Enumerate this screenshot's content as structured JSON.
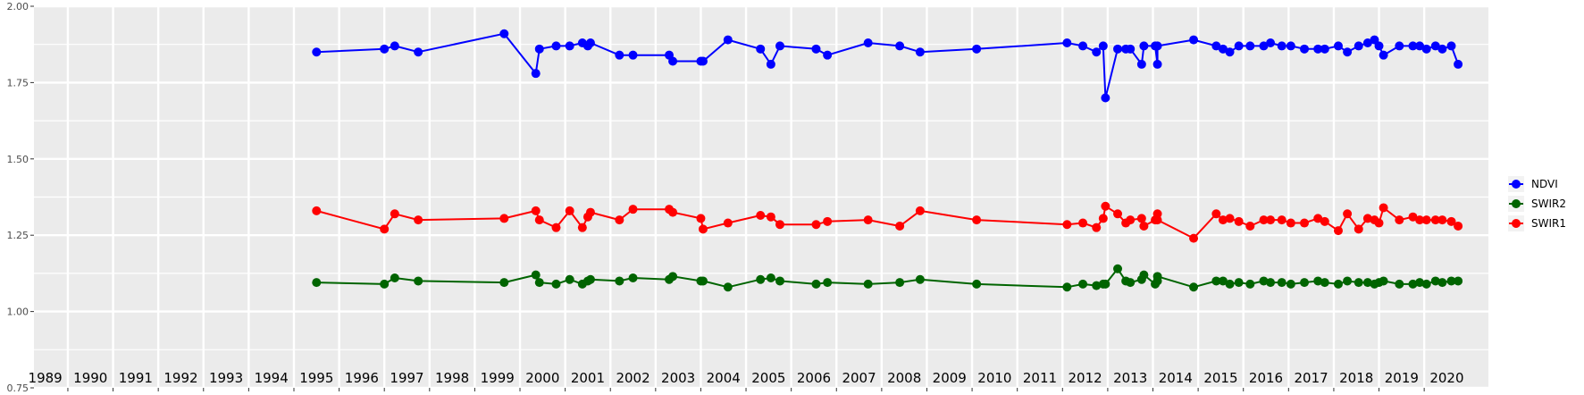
{
  "chart_data": {
    "type": "line",
    "title": "",
    "xlabel": "",
    "ylabel": "",
    "xlim": [
      1988.75,
      2020.92
    ],
    "ylim": [
      0.75,
      2.0
    ],
    "y_ticks": [
      "0.75",
      "1.00",
      "1.25",
      "1.50",
      "1.75",
      "2.00"
    ],
    "y_tick_values": [
      0.75,
      1.0,
      1.25,
      1.5,
      1.75,
      2.0
    ],
    "year_labels": [
      "1989",
      "1990",
      "1991",
      "1992",
      "1993",
      "1994",
      "1995",
      "1996",
      "1997",
      "1998",
      "1999",
      "2000",
      "2001",
      "2002",
      "2003",
      "2004",
      "2005",
      "2006",
      "2007",
      "2008",
      "2009",
      "2010",
      "2011",
      "2012",
      "2013",
      "2014",
      "2015",
      "2016",
      "2017",
      "2018",
      "2019",
      "2020"
    ],
    "grid": true,
    "legend_position": "right",
    "series": [
      {
        "name": "NDVI",
        "color": "#0000FF",
        "points": [
          [
            1995.0,
            1.85
          ],
          [
            1996.5,
            1.86
          ],
          [
            1996.73,
            1.87
          ],
          [
            1997.25,
            1.85
          ],
          [
            1999.15,
            1.91
          ],
          [
            1999.85,
            1.78
          ],
          [
            1999.93,
            1.86
          ],
          [
            2000.3,
            1.87
          ],
          [
            2000.6,
            1.87
          ],
          [
            2000.88,
            1.88
          ],
          [
            2001.0,
            1.87
          ],
          [
            2001.06,
            1.88
          ],
          [
            2001.7,
            1.84
          ],
          [
            2002.0,
            1.84
          ],
          [
            2002.8,
            1.84
          ],
          [
            2002.88,
            1.82
          ],
          [
            2003.5,
            1.82
          ],
          [
            2003.55,
            1.82
          ],
          [
            2004.1,
            1.89
          ],
          [
            2004.82,
            1.86
          ],
          [
            2005.05,
            1.81
          ],
          [
            2005.25,
            1.87
          ],
          [
            2006.05,
            1.86
          ],
          [
            2006.3,
            1.84
          ],
          [
            2007.2,
            1.88
          ],
          [
            2007.9,
            1.87
          ],
          [
            2008.35,
            1.85
          ],
          [
            2009.6,
            1.86
          ],
          [
            2011.6,
            1.88
          ],
          [
            2011.95,
            1.87
          ],
          [
            2012.25,
            1.85
          ],
          [
            2012.4,
            1.87
          ],
          [
            2012.45,
            1.7
          ],
          [
            2012.72,
            1.86
          ],
          [
            2012.9,
            1.86
          ],
          [
            2013.0,
            1.86
          ],
          [
            2013.25,
            1.81
          ],
          [
            2013.3,
            1.87
          ],
          [
            2013.55,
            1.87
          ],
          [
            2013.6,
            1.81
          ],
          [
            2013.6,
            1.87
          ],
          [
            2014.4,
            1.89
          ],
          [
            2014.9,
            1.87
          ],
          [
            2015.05,
            1.86
          ],
          [
            2015.2,
            1.85
          ],
          [
            2015.4,
            1.87
          ],
          [
            2015.65,
            1.87
          ],
          [
            2015.95,
            1.87
          ],
          [
            2016.1,
            1.88
          ],
          [
            2016.35,
            1.87
          ],
          [
            2016.55,
            1.87
          ],
          [
            2016.85,
            1.86
          ],
          [
            2017.15,
            1.86
          ],
          [
            2017.3,
            1.86
          ],
          [
            2017.6,
            1.87
          ],
          [
            2017.8,
            1.85
          ],
          [
            2018.05,
            1.87
          ],
          [
            2018.25,
            1.88
          ],
          [
            2018.4,
            1.89
          ],
          [
            2018.5,
            1.87
          ],
          [
            2018.6,
            1.84
          ],
          [
            2018.95,
            1.87
          ],
          [
            2019.25,
            1.87
          ],
          [
            2019.4,
            1.87
          ],
          [
            2019.55,
            1.86
          ],
          [
            2019.75,
            1.87
          ],
          [
            2019.9,
            1.86
          ],
          [
            2020.1,
            1.87
          ],
          [
            2020.25,
            1.81
          ]
        ]
      },
      {
        "name": "SWIR2",
        "color": "#006400",
        "points": [
          [
            1995.0,
            1.095
          ],
          [
            1996.5,
            1.09
          ],
          [
            1996.73,
            1.11
          ],
          [
            1997.25,
            1.1
          ],
          [
            1999.15,
            1.095
          ],
          [
            1999.85,
            1.12
          ],
          [
            1999.93,
            1.095
          ],
          [
            2000.3,
            1.09
          ],
          [
            2000.6,
            1.105
          ],
          [
            2000.88,
            1.09
          ],
          [
            2001.0,
            1.1
          ],
          [
            2001.06,
            1.105
          ],
          [
            2001.7,
            1.1
          ],
          [
            2002.0,
            1.11
          ],
          [
            2002.8,
            1.105
          ],
          [
            2002.88,
            1.115
          ],
          [
            2003.5,
            1.1
          ],
          [
            2003.55,
            1.1
          ],
          [
            2004.1,
            1.08
          ],
          [
            2004.82,
            1.105
          ],
          [
            2005.05,
            1.11
          ],
          [
            2005.25,
            1.1
          ],
          [
            2006.05,
            1.09
          ],
          [
            2006.3,
            1.095
          ],
          [
            2007.2,
            1.09
          ],
          [
            2007.9,
            1.095
          ],
          [
            2008.35,
            1.105
          ],
          [
            2009.6,
            1.09
          ],
          [
            2011.6,
            1.08
          ],
          [
            2011.95,
            1.09
          ],
          [
            2012.25,
            1.085
          ],
          [
            2012.4,
            1.09
          ],
          [
            2012.45,
            1.09
          ],
          [
            2012.72,
            1.14
          ],
          [
            2012.9,
            1.1
          ],
          [
            2013.0,
            1.095
          ],
          [
            2013.25,
            1.105
          ],
          [
            2013.3,
            1.12
          ],
          [
            2013.55,
            1.09
          ],
          [
            2013.6,
            1.1
          ],
          [
            2013.6,
            1.115
          ],
          [
            2014.4,
            1.08
          ],
          [
            2014.9,
            1.1
          ],
          [
            2015.05,
            1.1
          ],
          [
            2015.2,
            1.09
          ],
          [
            2015.4,
            1.095
          ],
          [
            2015.65,
            1.09
          ],
          [
            2015.95,
            1.1
          ],
          [
            2016.1,
            1.095
          ],
          [
            2016.35,
            1.095
          ],
          [
            2016.55,
            1.09
          ],
          [
            2016.85,
            1.095
          ],
          [
            2017.15,
            1.1
          ],
          [
            2017.3,
            1.095
          ],
          [
            2017.6,
            1.09
          ],
          [
            2017.8,
            1.1
          ],
          [
            2018.05,
            1.095
          ],
          [
            2018.25,
            1.095
          ],
          [
            2018.4,
            1.09
          ],
          [
            2018.5,
            1.095
          ],
          [
            2018.6,
            1.1
          ],
          [
            2018.95,
            1.09
          ],
          [
            2019.25,
            1.09
          ],
          [
            2019.4,
            1.095
          ],
          [
            2019.55,
            1.09
          ],
          [
            2019.75,
            1.1
          ],
          [
            2019.9,
            1.095
          ],
          [
            2020.1,
            1.1
          ],
          [
            2020.25,
            1.1
          ]
        ]
      },
      {
        "name": "SWIR1",
        "color": "#FF0000",
        "points": [
          [
            1995.0,
            1.33
          ],
          [
            1996.5,
            1.27
          ],
          [
            1996.73,
            1.32
          ],
          [
            1997.25,
            1.3
          ],
          [
            1999.15,
            1.305
          ],
          [
            1999.85,
            1.33
          ],
          [
            1999.93,
            1.3
          ],
          [
            2000.3,
            1.275
          ],
          [
            2000.6,
            1.33
          ],
          [
            2000.88,
            1.275
          ],
          [
            2001.0,
            1.31
          ],
          [
            2001.06,
            1.325
          ],
          [
            2001.7,
            1.3
          ],
          [
            2002.0,
            1.335
          ],
          [
            2002.8,
            1.335
          ],
          [
            2002.88,
            1.325
          ],
          [
            2003.5,
            1.305
          ],
          [
            2003.55,
            1.27
          ],
          [
            2004.1,
            1.29
          ],
          [
            2004.82,
            1.315
          ],
          [
            2005.05,
            1.31
          ],
          [
            2005.25,
            1.285
          ],
          [
            2006.05,
            1.285
          ],
          [
            2006.3,
            1.295
          ],
          [
            2007.2,
            1.3
          ],
          [
            2007.9,
            1.28
          ],
          [
            2008.35,
            1.33
          ],
          [
            2009.6,
            1.3
          ],
          [
            2011.6,
            1.285
          ],
          [
            2011.95,
            1.29
          ],
          [
            2012.25,
            1.275
          ],
          [
            2012.4,
            1.305
          ],
          [
            2012.45,
            1.345
          ],
          [
            2012.72,
            1.32
          ],
          [
            2012.9,
            1.29
          ],
          [
            2013.0,
            1.3
          ],
          [
            2013.25,
            1.305
          ],
          [
            2013.3,
            1.28
          ],
          [
            2013.55,
            1.3
          ],
          [
            2013.6,
            1.32
          ],
          [
            2013.6,
            1.3
          ],
          [
            2014.4,
            1.24
          ],
          [
            2014.9,
            1.32
          ],
          [
            2015.05,
            1.3
          ],
          [
            2015.2,
            1.305
          ],
          [
            2015.4,
            1.295
          ],
          [
            2015.65,
            1.28
          ],
          [
            2015.95,
            1.3
          ],
          [
            2016.1,
            1.3
          ],
          [
            2016.35,
            1.3
          ],
          [
            2016.55,
            1.29
          ],
          [
            2016.85,
            1.29
          ],
          [
            2017.15,
            1.305
          ],
          [
            2017.3,
            1.295
          ],
          [
            2017.6,
            1.265
          ],
          [
            2017.8,
            1.32
          ],
          [
            2018.05,
            1.27
          ],
          [
            2018.25,
            1.305
          ],
          [
            2018.4,
            1.3
          ],
          [
            2018.5,
            1.29
          ],
          [
            2018.6,
            1.34
          ],
          [
            2018.95,
            1.3
          ],
          [
            2019.25,
            1.31
          ],
          [
            2019.4,
            1.3
          ],
          [
            2019.55,
            1.3
          ],
          [
            2019.75,
            1.3
          ],
          [
            2019.9,
            1.3
          ],
          [
            2020.1,
            1.295
          ],
          [
            2020.25,
            1.28
          ]
        ]
      }
    ]
  }
}
